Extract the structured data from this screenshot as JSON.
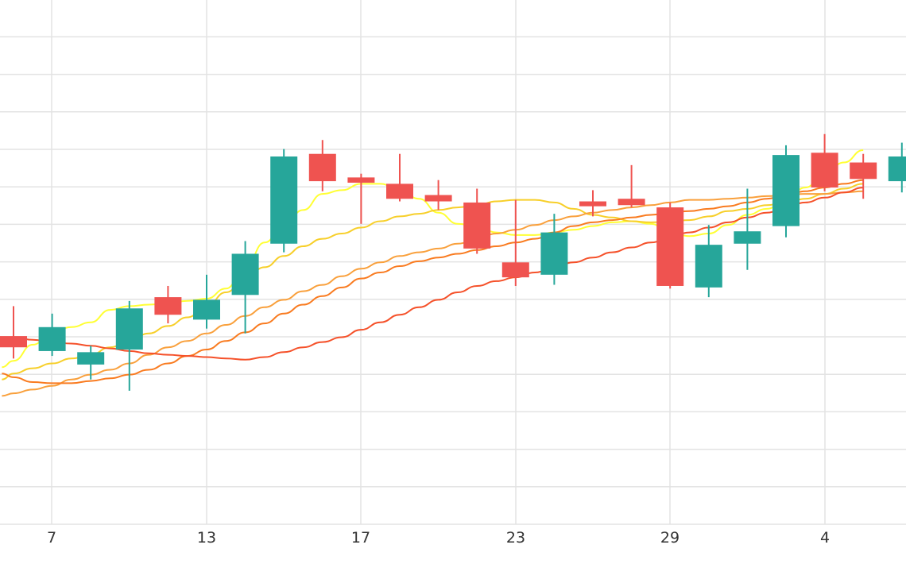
{
  "chart_data": {
    "type": "candlestick",
    "x_ticks": [
      "7",
      "13",
      "17",
      "23",
      "29",
      "4"
    ],
    "y_gridlines": 14,
    "grid": true,
    "candles": [
      {
        "open": 50.3,
        "close": 47.3,
        "high": 58.3,
        "low": 44.3
      },
      {
        "open": 46.3,
        "close": 52.7,
        "high": 56.3,
        "low": 45.0
      },
      {
        "open": 42.7,
        "close": 46.0,
        "high": 47.7,
        "low": 38.7
      },
      {
        "open": 46.7,
        "close": 57.7,
        "high": 59.7,
        "low": 35.7
      },
      {
        "open": 60.7,
        "close": 56.0,
        "high": 63.7,
        "low": 53.7
      },
      {
        "open": 54.7,
        "close": 60.0,
        "high": 66.7,
        "low": 52.3
      },
      {
        "open": 61.3,
        "close": 72.3,
        "high": 75.7,
        "low": 51.0
      },
      {
        "open": 75.0,
        "close": 98.3,
        "high": 100.3,
        "low": 72.7
      },
      {
        "open": 99.0,
        "close": 91.7,
        "high": 102.7,
        "low": 89.0
      },
      {
        "open": 92.7,
        "close": 91.3,
        "high": 93.7,
        "low": 80.3
      },
      {
        "open": 91.0,
        "close": 87.0,
        "high": 99.0,
        "low": 86.3
      },
      {
        "open": 88.0,
        "close": 86.3,
        "high": 92.0,
        "low": 84.0
      },
      {
        "open": 86.0,
        "close": 73.7,
        "high": 89.7,
        "low": 72.3
      },
      {
        "open": 70.0,
        "close": 66.0,
        "high": 86.7,
        "low": 63.7
      },
      {
        "open": 66.7,
        "close": 78.0,
        "high": 83.0,
        "low": 64.0
      },
      {
        "open": 86.3,
        "close": 85.0,
        "high": 89.3,
        "low": 82.3
      },
      {
        "open": 87.0,
        "close": 85.3,
        "high": 96.0,
        "low": 84.7
      },
      {
        "open": 84.7,
        "close": 63.7,
        "high": 86.0,
        "low": 63.0
      },
      {
        "open": 63.3,
        "close": 74.7,
        "high": 80.0,
        "low": 60.7
      },
      {
        "open": 75.0,
        "close": 78.3,
        "high": 89.7,
        "low": 68.0
      },
      {
        "open": 79.7,
        "close": 98.7,
        "high": 101.3,
        "low": 76.7
      },
      {
        "open": 99.3,
        "close": 90.0,
        "high": 104.3,
        "low": 89.0
      },
      {
        "open": 96.7,
        "close": 92.3,
        "high": 99.0,
        "low": 87.0
      },
      {
        "open": 91.7,
        "close": 98.3,
        "high": 102.0,
        "low": 88.7
      }
    ],
    "moving_averages": [
      {
        "color": "#ffff33",
        "values": [
          [
            -0.3,
            42
          ],
          [
            0,
            43.7
          ],
          [
            0.5,
            48
          ],
          [
            1,
            51.3
          ],
          [
            1.5,
            52.7
          ],
          [
            2,
            54
          ],
          [
            2.5,
            57.3
          ],
          [
            3,
            58.3
          ],
          [
            3.5,
            58.7
          ],
          [
            4,
            59
          ],
          [
            4.5,
            59.7
          ],
          [
            5,
            60.3
          ],
          [
            5.5,
            63
          ],
          [
            6,
            68.7
          ],
          [
            6.5,
            75.3
          ],
          [
            7,
            80
          ],
          [
            7.5,
            84
          ],
          [
            8,
            88.3
          ],
          [
            8.5,
            89.3
          ],
          [
            9,
            91
          ],
          [
            9.5,
            91
          ],
          [
            10,
            89.3
          ],
          [
            10.5,
            87
          ],
          [
            11,
            83.3
          ],
          [
            11.5,
            80.3
          ],
          [
            12,
            79.7
          ],
          [
            12.5,
            78
          ],
          [
            13,
            77.3
          ],
          [
            13.5,
            77.3
          ],
          [
            14,
            78
          ],
          [
            14.5,
            78.7
          ],
          [
            15,
            79.7
          ],
          [
            15.5,
            80.7
          ],
          [
            16,
            81
          ],
          [
            16.5,
            80.3
          ],
          [
            17,
            78
          ],
          [
            17.5,
            77
          ],
          [
            18,
            77.7
          ],
          [
            18.5,
            80
          ],
          [
            19,
            82.7
          ],
          [
            19.5,
            84.3
          ],
          [
            20,
            86.7
          ],
          [
            20.5,
            90
          ],
          [
            21,
            93.7
          ],
          [
            21.5,
            96.7
          ],
          [
            22,
            100
          ]
        ]
      },
      {
        "color": "#f7cf2a",
        "values": [
          [
            -0.3,
            38.7
          ],
          [
            0,
            40.3
          ],
          [
            0.5,
            41.7
          ],
          [
            1,
            43
          ],
          [
            1.5,
            44.3
          ],
          [
            2,
            45.3
          ],
          [
            2.5,
            47.3
          ],
          [
            3,
            49
          ],
          [
            3.5,
            51
          ],
          [
            4,
            53
          ],
          [
            4.5,
            55.3
          ],
          [
            5,
            58.3
          ],
          [
            5.5,
            62
          ],
          [
            6,
            65.7
          ],
          [
            6.5,
            68.7
          ],
          [
            7,
            71.7
          ],
          [
            7.5,
            74.3
          ],
          [
            8,
            76.3
          ],
          [
            8.5,
            77.7
          ],
          [
            9,
            79.3
          ],
          [
            9.5,
            81
          ],
          [
            10,
            82.3
          ],
          [
            10.5,
            83
          ],
          [
            11,
            84
          ],
          [
            11.5,
            84.7
          ],
          [
            12,
            85.3
          ],
          [
            12.5,
            86.3
          ],
          [
            13,
            86.7
          ],
          [
            13.5,
            86.7
          ],
          [
            14,
            86
          ],
          [
            14.5,
            84.3
          ],
          [
            15,
            82.7
          ],
          [
            15.5,
            82
          ],
          [
            16,
            81
          ],
          [
            16.5,
            80.7
          ],
          [
            17,
            81
          ],
          [
            17.5,
            81.3
          ],
          [
            18,
            82.3
          ],
          [
            18.5,
            83.7
          ],
          [
            19,
            84.3
          ],
          [
            19.5,
            85.3
          ],
          [
            20,
            86
          ],
          [
            20.5,
            87
          ],
          [
            21,
            88.3
          ],
          [
            21.5,
            89.7
          ],
          [
            22,
            91
          ]
        ]
      },
      {
        "color": "#f9a03c",
        "values": [
          [
            -0.3,
            34.3
          ],
          [
            0,
            35
          ],
          [
            0.5,
            36
          ],
          [
            1,
            37
          ],
          [
            1.5,
            38.7
          ],
          [
            2,
            40
          ],
          [
            2.5,
            41.3
          ],
          [
            3,
            43
          ],
          [
            3.5,
            45.3
          ],
          [
            4,
            47.3
          ],
          [
            4.5,
            49
          ],
          [
            5,
            51
          ],
          [
            5.5,
            53.3
          ],
          [
            6,
            55.7
          ],
          [
            6.5,
            58
          ],
          [
            7,
            60
          ],
          [
            7.5,
            62.3
          ],
          [
            8,
            64
          ],
          [
            8.5,
            66.3
          ],
          [
            9,
            68.3
          ],
          [
            9.5,
            70
          ],
          [
            10,
            71.7
          ],
          [
            10.5,
            72.7
          ],
          [
            11,
            73.7
          ],
          [
            11.5,
            75
          ],
          [
            12,
            76.3
          ],
          [
            12.5,
            77.7
          ],
          [
            13,
            78.7
          ],
          [
            13.5,
            80
          ],
          [
            14,
            81.3
          ],
          [
            14.5,
            82.3
          ],
          [
            15,
            83.3
          ],
          [
            15.5,
            84
          ],
          [
            16,
            84.7
          ],
          [
            16.5,
            85.3
          ],
          [
            17,
            86
          ],
          [
            17.5,
            86.7
          ],
          [
            18,
            86.7
          ],
          [
            18.5,
            87
          ],
          [
            19,
            87.3
          ],
          [
            19.5,
            87.7
          ],
          [
            20,
            88
          ],
          [
            20.5,
            88.3
          ],
          [
            21,
            88.3
          ],
          [
            21.5,
            88.7
          ],
          [
            22,
            89
          ]
        ]
      },
      {
        "color": "#f97b20",
        "values": [
          [
            -0.3,
            40.3
          ],
          [
            0,
            39.3
          ],
          [
            0.5,
            38
          ],
          [
            1,
            37.7
          ],
          [
            1.5,
            37.7
          ],
          [
            2,
            38.3
          ],
          [
            2.5,
            39
          ],
          [
            3,
            40
          ],
          [
            3.5,
            41.3
          ],
          [
            4,
            43
          ],
          [
            4.5,
            45
          ],
          [
            5,
            46.7
          ],
          [
            5.5,
            49
          ],
          [
            6,
            51.3
          ],
          [
            6.5,
            53.7
          ],
          [
            7,
            56.3
          ],
          [
            7.5,
            58.7
          ],
          [
            8,
            61
          ],
          [
            8.5,
            63.3
          ],
          [
            9,
            65.7
          ],
          [
            9.5,
            67.3
          ],
          [
            10,
            69
          ],
          [
            10.5,
            70.3
          ],
          [
            11,
            71.3
          ],
          [
            11.5,
            72.3
          ],
          [
            12,
            73.3
          ],
          [
            12.5,
            74.3
          ],
          [
            13,
            75.3
          ],
          [
            13.5,
            76.3
          ],
          [
            14,
            78
          ],
          [
            14.5,
            79.7
          ],
          [
            15,
            80.7
          ],
          [
            15.5,
            81.3
          ],
          [
            16,
            82
          ],
          [
            16.5,
            82.7
          ],
          [
            17,
            83.3
          ],
          [
            17.5,
            83.7
          ],
          [
            18,
            84.3
          ],
          [
            18.5,
            85
          ],
          [
            19,
            86
          ],
          [
            19.5,
            87
          ],
          [
            20,
            88
          ],
          [
            20.5,
            89
          ],
          [
            21,
            90
          ],
          [
            21.5,
            91
          ],
          [
            22,
            92
          ]
        ]
      },
      {
        "color": "#f5512a",
        "values": [
          [
            -0.3,
            50
          ],
          [
            0,
            50
          ],
          [
            0.5,
            49.3
          ],
          [
            1,
            48.7
          ],
          [
            1.5,
            48.3
          ],
          [
            2,
            47.7
          ],
          [
            2.5,
            47
          ],
          [
            3,
            46.3
          ],
          [
            3.5,
            45.7
          ],
          [
            4,
            45.3
          ],
          [
            4.5,
            45
          ],
          [
            5,
            44.7
          ],
          [
            5.5,
            44.3
          ],
          [
            6,
            44
          ],
          [
            6.5,
            44.7
          ],
          [
            7,
            46
          ],
          [
            7.5,
            47.3
          ],
          [
            8,
            48.7
          ],
          [
            8.5,
            50
          ],
          [
            9,
            52
          ],
          [
            9.5,
            54
          ],
          [
            10,
            56
          ],
          [
            10.5,
            58
          ],
          [
            11,
            60
          ],
          [
            11.5,
            62
          ],
          [
            12,
            63.7
          ],
          [
            12.5,
            65
          ],
          [
            13,
            66
          ],
          [
            13.5,
            67.3
          ],
          [
            14,
            68.7
          ],
          [
            14.5,
            70
          ],
          [
            15,
            71.3
          ],
          [
            15.5,
            72.7
          ],
          [
            16,
            74
          ],
          [
            16.5,
            75.3
          ],
          [
            17,
            76.7
          ],
          [
            17.5,
            78
          ],
          [
            18,
            79.3
          ],
          [
            18.5,
            80.7
          ],
          [
            19,
            82
          ],
          [
            19.5,
            83.3
          ],
          [
            20,
            84.7
          ],
          [
            20.5,
            86
          ],
          [
            21,
            87.3
          ],
          [
            21.5,
            88.7
          ],
          [
            22,
            90
          ]
        ]
      }
    ],
    "colors": {
      "up": "#26a69a",
      "down": "#ef5350",
      "grid": "#e3e3e3",
      "tick_text": "#333333"
    }
  }
}
